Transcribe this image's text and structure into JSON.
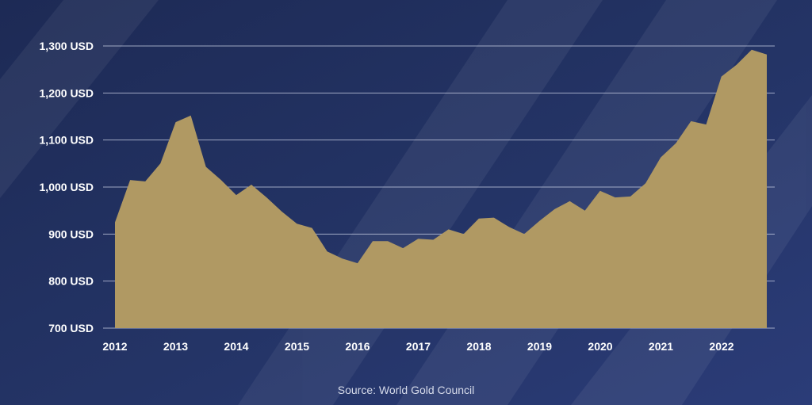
{
  "chart_data": {
    "type": "area",
    "title": "",
    "xlabel": "",
    "ylabel": "",
    "x_tick_labels": [
      "2012",
      "2013",
      "2014",
      "2015",
      "2016",
      "2017",
      "2018",
      "2019",
      "2020",
      "2021",
      "2022"
    ],
    "y_tick_labels": [
      "700 USD",
      "800 USD",
      "900 USD",
      "1,000 USD",
      "1,100 USD",
      "1,200 USD",
      "1,300 USD"
    ],
    "y_ticks": [
      700,
      800,
      900,
      1000,
      1100,
      1200,
      1300
    ],
    "ylim": [
      700,
      1300
    ],
    "xlim": [
      2012.0,
      2022.75
    ],
    "grid": true,
    "legend": "none",
    "colors": {
      "background": "#1f2d5c",
      "area": "#b09963",
      "grid": "#c9cfe4",
      "text": "#ffffff"
    },
    "series": [
      {
        "x": [
          2012.0,
          2012.25,
          2012.5,
          2012.75,
          2013.0,
          2013.25,
          2013.5,
          2013.75,
          2014.0,
          2014.25,
          2014.5,
          2014.75,
          2015.0,
          2015.25,
          2015.5,
          2015.75,
          2016.0,
          2016.25,
          2016.5,
          2016.75,
          2017.0,
          2017.25,
          2017.5,
          2017.75,
          2018.0,
          2018.25,
          2018.5,
          2018.75,
          2019.0,
          2019.25,
          2019.5,
          2019.75,
          2020.0,
          2020.25,
          2020.5,
          2020.75,
          2021.0,
          2021.25,
          2021.5,
          2021.75,
          2022.0,
          2022.25,
          2022.5,
          2022.75
        ],
        "values": [
          925,
          1015,
          1012,
          1050,
          1138,
          1152,
          1043,
          1015,
          983,
          1005,
          978,
          948,
          922,
          913,
          863,
          848,
          838,
          885,
          885,
          870,
          890,
          888,
          910,
          900,
          933,
          935,
          915,
          900,
          928,
          953,
          970,
          950,
          992,
          978,
          980,
          1008,
          1063,
          1093,
          1140,
          1133,
          1235,
          1260,
          1292,
          1282
        ]
      }
    ]
  },
  "source": "Source: World Gold Council"
}
